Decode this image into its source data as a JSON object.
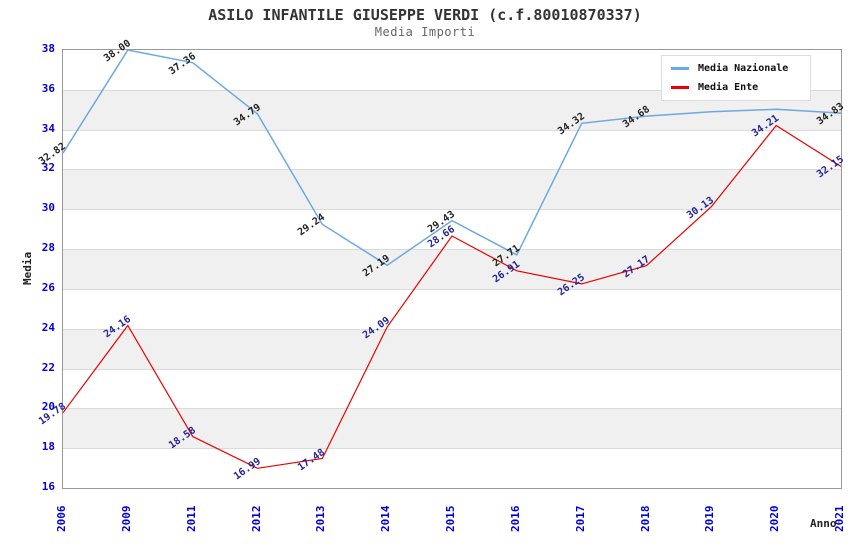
{
  "title": "ASILO INFANTILE GIUSEPPE VERDI (c.f.80010870337)",
  "subtitle": "Media Importi",
  "axes": {
    "x_label": "Anno",
    "y_label": "Media",
    "y_ticks": [
      38,
      36,
      34,
      32,
      30,
      28,
      26,
      24,
      22,
      20,
      18,
      16
    ],
    "tick_label_color": "#0000dd"
  },
  "colors": {
    "band_gray": "#f0f0f0",
    "gridline": "#dadada",
    "plot_border": "#999999",
    "title": "#333333",
    "subtitle": "#666666"
  },
  "chart_data": {
    "type": "line",
    "title": "ASILO INFANTILE GIUSEPPE VERDI (c.f.80010870337)",
    "subtitle": "Media Importi",
    "xlabel": "Anno",
    "ylabel": "Media",
    "ylim": [
      16,
      38
    ],
    "grid": "horizontal-bands",
    "legend_position": "top-right-inside",
    "categories": [
      "2006",
      "2009",
      "2011",
      "2012",
      "2013",
      "2014",
      "2015",
      "2016",
      "2017",
      "2018",
      "2019",
      "2020",
      "2021"
    ],
    "series": [
      {
        "name": "Media Nazionale",
        "color": "#6ca9e2",
        "label_color": "#222222",
        "values": [
          32.82,
          38.0,
          37.36,
          34.79,
          29.24,
          27.19,
          29.43,
          27.71,
          34.32,
          34.68,
          34.9,
          35.02,
          34.83
        ],
        "labels": [
          "32.82",
          "38.00",
          "37.36",
          "34.79",
          "29.24",
          "27.19",
          "29.43",
          "27.71",
          "34.32",
          "34.68",
          "",
          "",
          "34.83"
        ]
      },
      {
        "name": "Media Ente",
        "color": "#ee0000",
        "label_color": "#222299",
        "values": [
          19.78,
          24.16,
          18.58,
          16.99,
          17.48,
          24.09,
          28.66,
          26.91,
          26.25,
          27.17,
          30.13,
          34.21,
          32.15
        ],
        "labels": [
          "19.78",
          "24.16",
          "18.58",
          "16.99",
          "17.48",
          "24.09",
          "28.66",
          "26.91",
          "26.25",
          "27.17",
          "30.13",
          "34.21",
          "32.15"
        ]
      }
    ]
  }
}
